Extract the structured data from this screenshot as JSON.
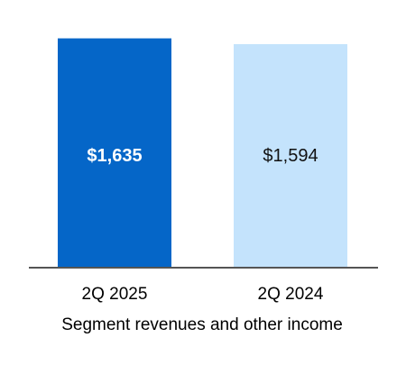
{
  "chart_data": {
    "type": "bar",
    "categories": [
      "2Q 2025",
      "2Q 2024"
    ],
    "values": [
      1635,
      1594
    ],
    "value_labels": [
      "$1,635",
      "$1,594"
    ],
    "bar_colors": [
      "#0566c8",
      "#c4e3fc"
    ],
    "value_label_colors": [
      "#ffffff",
      "#111111"
    ],
    "xlabel": "Segment revenues and other income",
    "ylim": [
      0,
      1690
    ],
    "axis_color": "#555555",
    "grid": false,
    "legend": "none"
  }
}
